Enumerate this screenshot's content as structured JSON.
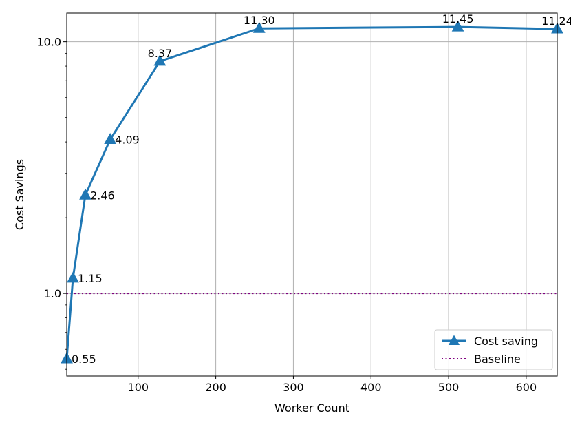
{
  "chart_data": {
    "type": "line",
    "xlabel": "Worker Count",
    "ylabel": "Cost Savings",
    "x_scale": "linear",
    "y_scale": "log",
    "xlim": [
      8,
      640
    ],
    "ylim": [
      0.47,
      13.0
    ],
    "x_ticks": [
      100,
      200,
      300,
      400,
      500,
      600
    ],
    "y_ticks": [
      1.0,
      10.0
    ],
    "y_tick_labels": [
      "1.0",
      "10.0"
    ],
    "grid": true,
    "legend_position": "lower-right",
    "series": [
      {
        "name": "Cost saving",
        "color": "#1f77b4",
        "marker": "triangle-up",
        "x": [
          8,
          16,
          32,
          64,
          128,
          256,
          512,
          640
        ],
        "y": [
          0.55,
          1.15,
          2.46,
          4.09,
          8.37,
          11.3,
          11.45,
          11.24
        ],
        "labels": [
          "0.55",
          "1.15",
          "2.46",
          "4.09",
          "8.37",
          "11.30",
          "11.45",
          "11.24"
        ]
      },
      {
        "name": "Baseline",
        "color": "#800080",
        "style": "dotted",
        "x": [
          8,
          640
        ],
        "y": [
          1.0,
          1.0
        ]
      }
    ]
  }
}
